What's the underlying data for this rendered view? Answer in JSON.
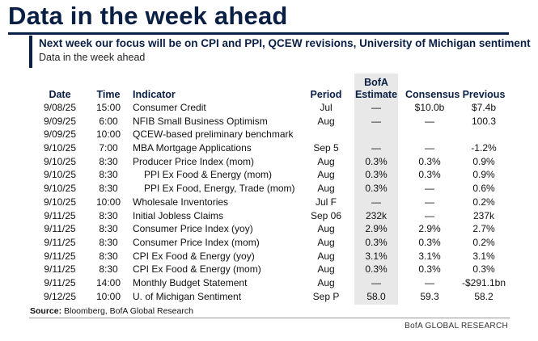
{
  "title": "Data in the week ahead",
  "subtitle": "Next week our focus will be on CPI and PPI, QCEW revisions, University of Michigan sentiment",
  "caption": "Data in the week ahead",
  "table": {
    "headers": {
      "date": "Date",
      "time": "Time",
      "indicator": "Indicator",
      "period": "Period",
      "estimate_line1": "BofA",
      "estimate_line2": "Estimate",
      "consensus": "Consensus",
      "previous": "Previous"
    },
    "rows": [
      {
        "date": "9/08/25",
        "time": "15:00",
        "indicator": "Consumer Credit",
        "indent": false,
        "period": "Jul",
        "estimate": "—",
        "consensus": "$10.0b",
        "previous": "$7.4b"
      },
      {
        "date": "9/09/25",
        "time": "6:00",
        "indicator": "NFIB Small Business Optimism",
        "indent": false,
        "period": "Aug",
        "estimate": "—",
        "consensus": "—",
        "previous": "100.3"
      },
      {
        "date": "9/09/25",
        "time": "10:00",
        "indicator": "QCEW-based preliminary benchmark",
        "indent": false,
        "period": "",
        "estimate": "",
        "consensus": "",
        "previous": ""
      },
      {
        "date": "9/10/25",
        "time": "7:00",
        "indicator": "MBA Mortgage Applications",
        "indent": false,
        "period": "Sep 5",
        "estimate": "—",
        "consensus": "—",
        "previous": "-1.2%"
      },
      {
        "date": "9/10/25",
        "time": "8:30",
        "indicator": "Producer Price Index (mom)",
        "indent": false,
        "period": "Aug",
        "estimate": "0.3%",
        "consensus": "0.3%",
        "previous": "0.9%"
      },
      {
        "date": "9/10/25",
        "time": "8:30",
        "indicator": "PPI Ex Food & Energy (mom)",
        "indent": true,
        "period": "Aug",
        "estimate": "0.3%",
        "consensus": "0.3%",
        "previous": "0.9%"
      },
      {
        "date": "9/10/25",
        "time": "8:30",
        "indicator": "PPI Ex Food, Energy, Trade (mom)",
        "indent": true,
        "period": "Aug",
        "estimate": "0.3%",
        "consensus": "—",
        "previous": "0.6%"
      },
      {
        "date": "9/10/25",
        "time": "10:00",
        "indicator": "Wholesale Inventories",
        "indent": false,
        "period": "Jul F",
        "estimate": "—",
        "consensus": "—",
        "previous": "0.2%"
      },
      {
        "date": "9/11/25",
        "time": "8:30",
        "indicator": "Initial Jobless Claims",
        "indent": false,
        "period": "Sep 06",
        "estimate": "232k",
        "consensus": "—",
        "previous": "237k"
      },
      {
        "date": "9/11/25",
        "time": "8:30",
        "indicator": "Consumer Price Index (yoy)",
        "indent": false,
        "period": "Aug",
        "estimate": "2.9%",
        "consensus": "2.9%",
        "previous": "2.7%"
      },
      {
        "date": "9/11/25",
        "time": "8:30",
        "indicator": "Consumer Price Index (mom)",
        "indent": false,
        "period": "Aug",
        "estimate": "0.3%",
        "consensus": "0.3%",
        "previous": "0.2%"
      },
      {
        "date": "9/11/25",
        "time": "8:30",
        "indicator": "CPI Ex Food & Energy (yoy)",
        "indent": false,
        "period": "Aug",
        "estimate": "3.1%",
        "consensus": "3.1%",
        "previous": "3.1%"
      },
      {
        "date": "9/11/25",
        "time": "8:30",
        "indicator": "CPI Ex Food & Energy (mom)",
        "indent": false,
        "period": "Aug",
        "estimate": "0.3%",
        "consensus": "0.3%",
        "previous": "0.3%"
      },
      {
        "date": "9/11/25",
        "time": "14:00",
        "indicator": "Monthly Budget Statement",
        "indent": false,
        "period": "Aug",
        "estimate": "—",
        "consensus": "—",
        "previous": "-$291.1bn"
      },
      {
        "date": "9/12/25",
        "time": "10:00",
        "indicator": "U. of Michigan Sentiment",
        "indent": false,
        "period": "Sep P",
        "estimate": "58.0",
        "consensus": "59.3",
        "previous": "58.2"
      }
    ]
  },
  "source": {
    "label": "Source:",
    "text": " Bloomberg, BofA Global Research"
  },
  "brand": "BofA GLOBAL RESEARCH",
  "colors": {
    "navy": "#0a1f44",
    "estimate_shading": "#e8e8e8"
  }
}
